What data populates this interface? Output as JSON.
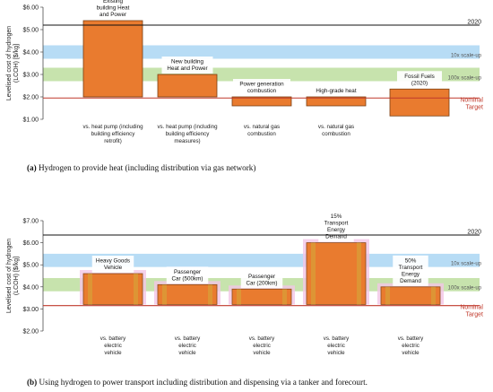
{
  "chart_data": [
    {
      "type": "bar",
      "ylabel": "Levelised cost of hydrogen (LCOH) [$/kg]",
      "ylim": [
        1,
        6
      ],
      "yticks": [
        "$1.00",
        "$2.00",
        "$3.00",
        "$4.00",
        "$5.00",
        "$6.00"
      ],
      "bars": [
        {
          "label": "Existing building Heat and Power",
          "category": "vs. heat pump (including building efficiency retrofit)",
          "top": 5.4,
          "bottom": 2.0
        },
        {
          "label": "New building Heat and Power",
          "category": "vs. heat pump (including building efficiency measures)",
          "top": 3.0,
          "bottom": 2.0
        },
        {
          "label": "Power generation combustion",
          "category": "vs. natural gas combustion",
          "top": 2.0,
          "bottom": 1.6
        },
        {
          "label": "High-grade heat",
          "category": "vs. natural gas combustion",
          "top": 2.0,
          "bottom": 1.6
        },
        {
          "label": "Fossil Fuels (2020)",
          "category": "",
          "top": 2.35,
          "bottom": 1.15
        }
      ],
      "reference_lines": [
        {
          "label": "2020",
          "value": 5.2,
          "color": "#111111"
        },
        {
          "label": "Nominal Target",
          "value": 1.95,
          "color": "#c0392b"
        }
      ],
      "bands": [
        {
          "label": "10x scale-up",
          "from": 3.7,
          "to": 4.3,
          "color": "#b7dcf5"
        },
        {
          "label": "100x scale-up",
          "from": 2.7,
          "to": 3.3,
          "color": "#c7e3ad"
        }
      ],
      "caption_tag": "(a)",
      "caption": "Hydrogen to provide heat (including distribution via gas network)"
    },
    {
      "type": "bar",
      "ylabel": "Levelised cost of hydrogen (LCOH) [$/kg]",
      "ylim": [
        2,
        7
      ],
      "yticks": [
        "$2.00",
        "$3.00",
        "$4.00",
        "$5.00",
        "$6.00",
        "$7.00"
      ],
      "bars": [
        {
          "label": "Heavy Goods Vehicle",
          "category": "vs. battery electric vehicle",
          "top": 4.6,
          "bottom": 3.2
        },
        {
          "label": "Passenger Car (500km)",
          "category": "vs. battery electric vehicle",
          "top": 4.1,
          "bottom": 3.2
        },
        {
          "label": "Passenger Car (200km)",
          "category": "vs. battery electric vehicle",
          "top": 3.9,
          "bottom": 3.2
        },
        {
          "label": "15% Transport Energy Demand",
          "category": "vs. battery electric vehicle",
          "top": 6.0,
          "bottom": 3.2
        },
        {
          "label": "50% Transport Energy Demand",
          "category": "vs. battery electric vehicle",
          "top": 4.0,
          "bottom": 3.2
        }
      ],
      "reference_lines": [
        {
          "label": "2020",
          "value": 6.35,
          "color": "#111111"
        },
        {
          "label": "Nominal Target",
          "value": 3.15,
          "color": "#c0392b"
        }
      ],
      "bands": [
        {
          "label": "10x scale-up",
          "from": 4.9,
          "to": 5.5,
          "color": "#b7dcf5"
        },
        {
          "label": "100x scale-up",
          "from": 3.8,
          "to": 4.4,
          "color": "#c7e3ad"
        }
      ],
      "caption_tag": "(b)",
      "caption": "Using hydrogen to power transport including distribution and dispensing via a tanker and forecourt."
    }
  ]
}
